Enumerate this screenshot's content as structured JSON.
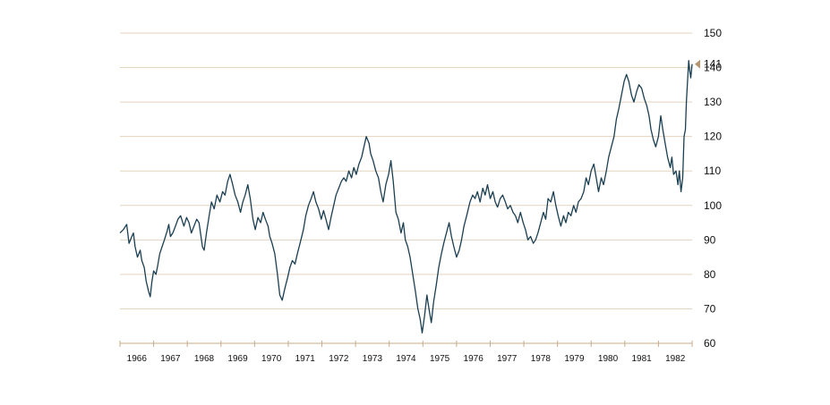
{
  "chart_data": {
    "type": "line",
    "title": "",
    "xlabel": "",
    "ylabel": "",
    "ylim": [
      60,
      150
    ],
    "xlim": [
      1965.6,
      1982.6
    ],
    "grid": true,
    "y_ticks": [
      60,
      70,
      80,
      90,
      100,
      110,
      120,
      130,
      140,
      150
    ],
    "x_tick_labels": [
      "1966",
      "1967",
      "1968",
      "1969",
      "1970",
      "1971",
      "1972",
      "1973",
      "1974",
      "1975",
      "1976",
      "1977",
      "1978",
      "1979",
      "1980",
      "1981",
      "1982"
    ],
    "current_value_label": "141",
    "current_value": 141,
    "colors": {
      "line": "#1b3f52",
      "grid": "#e3d3bf",
      "marker": "#b59673",
      "axis": "#c9ab8a"
    },
    "series": [
      {
        "values": [
          [
            1965.6,
            92
          ],
          [
            1965.7,
            93
          ],
          [
            1965.8,
            94.5
          ],
          [
            1965.87,
            89
          ],
          [
            1965.95,
            91
          ],
          [
            1966.0,
            92
          ],
          [
            1966.05,
            88
          ],
          [
            1966.12,
            85
          ],
          [
            1966.2,
            87
          ],
          [
            1966.25,
            84
          ],
          [
            1966.32,
            82
          ],
          [
            1966.38,
            78
          ],
          [
            1966.45,
            75
          ],
          [
            1966.5,
            73.5
          ],
          [
            1966.55,
            78
          ],
          [
            1966.6,
            81
          ],
          [
            1966.67,
            80
          ],
          [
            1966.72,
            82.5
          ],
          [
            1966.78,
            86
          ],
          [
            1966.85,
            88
          ],
          [
            1966.92,
            90
          ],
          [
            1967.0,
            92.5
          ],
          [
            1967.05,
            94.5
          ],
          [
            1967.1,
            91
          ],
          [
            1967.17,
            92
          ],
          [
            1967.25,
            94
          ],
          [
            1967.32,
            96
          ],
          [
            1967.4,
            97
          ],
          [
            1967.5,
            94
          ],
          [
            1967.58,
            96.5
          ],
          [
            1967.65,
            95
          ],
          [
            1967.72,
            92
          ],
          [
            1967.8,
            94
          ],
          [
            1967.88,
            96
          ],
          [
            1967.95,
            95
          ],
          [
            1968.05,
            88
          ],
          [
            1968.1,
            87
          ],
          [
            1968.17,
            92
          ],
          [
            1968.25,
            97
          ],
          [
            1968.32,
            101
          ],
          [
            1968.4,
            99
          ],
          [
            1968.48,
            103
          ],
          [
            1968.57,
            101
          ],
          [
            1968.65,
            104
          ],
          [
            1968.72,
            103
          ],
          [
            1968.8,
            107
          ],
          [
            1968.87,
            109
          ],
          [
            1968.95,
            106
          ],
          [
            1969.02,
            103
          ],
          [
            1969.1,
            101
          ],
          [
            1969.18,
            98
          ],
          [
            1969.25,
            101
          ],
          [
            1969.32,
            103
          ],
          [
            1969.4,
            106
          ],
          [
            1969.47,
            102
          ],
          [
            1969.55,
            96
          ],
          [
            1969.62,
            93
          ],
          [
            1969.7,
            96.5
          ],
          [
            1969.78,
            95
          ],
          [
            1969.85,
            98
          ],
          [
            1969.92,
            96
          ],
          [
            1970.0,
            94
          ],
          [
            1970.05,
            91
          ],
          [
            1970.12,
            89
          ],
          [
            1970.2,
            86
          ],
          [
            1970.28,
            80
          ],
          [
            1970.35,
            74
          ],
          [
            1970.42,
            72.5
          ],
          [
            1970.5,
            76
          ],
          [
            1970.58,
            79
          ],
          [
            1970.65,
            82
          ],
          [
            1970.72,
            84
          ],
          [
            1970.8,
            83
          ],
          [
            1970.87,
            86
          ],
          [
            1970.95,
            89
          ],
          [
            1971.05,
            93
          ],
          [
            1971.12,
            97
          ],
          [
            1971.2,
            100
          ],
          [
            1971.28,
            102
          ],
          [
            1971.35,
            104
          ],
          [
            1971.42,
            101
          ],
          [
            1971.5,
            99
          ],
          [
            1971.58,
            96
          ],
          [
            1971.65,
            98.5
          ],
          [
            1971.72,
            96
          ],
          [
            1971.8,
            93
          ],
          [
            1971.88,
            97
          ],
          [
            1971.95,
            100
          ],
          [
            1972.02,
            103
          ],
          [
            1972.1,
            105
          ],
          [
            1972.18,
            107
          ],
          [
            1972.25,
            108
          ],
          [
            1972.32,
            107
          ],
          [
            1972.4,
            110
          ],
          [
            1972.48,
            108
          ],
          [
            1972.55,
            111
          ],
          [
            1972.62,
            109
          ],
          [
            1972.7,
            112
          ],
          [
            1972.78,
            114
          ],
          [
            1972.85,
            117
          ],
          [
            1972.92,
            120
          ],
          [
            1973.0,
            118
          ],
          [
            1973.05,
            115
          ],
          [
            1973.12,
            113
          ],
          [
            1973.2,
            110
          ],
          [
            1973.28,
            108
          ],
          [
            1973.35,
            104
          ],
          [
            1973.42,
            101
          ],
          [
            1973.5,
            106
          ],
          [
            1973.58,
            109
          ],
          [
            1973.65,
            113
          ],
          [
            1973.72,
            107
          ],
          [
            1973.8,
            98
          ],
          [
            1973.87,
            96
          ],
          [
            1973.95,
            92
          ],
          [
            1974.02,
            95
          ],
          [
            1974.08,
            90
          ],
          [
            1974.15,
            88
          ],
          [
            1974.22,
            85
          ],
          [
            1974.3,
            80
          ],
          [
            1974.38,
            75
          ],
          [
            1974.45,
            70
          ],
          [
            1974.52,
            67
          ],
          [
            1974.58,
            63
          ],
          [
            1974.65,
            68
          ],
          [
            1974.72,
            74
          ],
          [
            1974.78,
            70
          ],
          [
            1974.85,
            66
          ],
          [
            1974.92,
            72
          ],
          [
            1975.0,
            77
          ],
          [
            1975.07,
            82
          ],
          [
            1975.15,
            86
          ],
          [
            1975.22,
            89
          ],
          [
            1975.3,
            92
          ],
          [
            1975.38,
            95
          ],
          [
            1975.45,
            91
          ],
          [
            1975.52,
            88
          ],
          [
            1975.6,
            85
          ],
          [
            1975.68,
            87
          ],
          [
            1975.75,
            90
          ],
          [
            1975.82,
            94
          ],
          [
            1975.9,
            97
          ],
          [
            1976.0,
            101
          ],
          [
            1976.08,
            103
          ],
          [
            1976.15,
            102
          ],
          [
            1976.22,
            104
          ],
          [
            1976.3,
            101
          ],
          [
            1976.38,
            105
          ],
          [
            1976.45,
            103
          ],
          [
            1976.52,
            106
          ],
          [
            1976.6,
            102
          ],
          [
            1976.68,
            104
          ],
          [
            1976.75,
            101
          ],
          [
            1976.82,
            99.5
          ],
          [
            1976.9,
            102
          ],
          [
            1976.97,
            103
          ],
          [
            1977.05,
            101
          ],
          [
            1977.12,
            99
          ],
          [
            1977.2,
            100
          ],
          [
            1977.28,
            98
          ],
          [
            1977.35,
            97
          ],
          [
            1977.42,
            95
          ],
          [
            1977.5,
            98
          ],
          [
            1977.58,
            95
          ],
          [
            1977.65,
            93
          ],
          [
            1977.72,
            90
          ],
          [
            1977.8,
            91
          ],
          [
            1977.88,
            89
          ],
          [
            1977.95,
            90
          ],
          [
            1978.02,
            92
          ],
          [
            1978.1,
            95
          ],
          [
            1978.18,
            98
          ],
          [
            1978.25,
            96
          ],
          [
            1978.32,
            102
          ],
          [
            1978.4,
            101
          ],
          [
            1978.48,
            104
          ],
          [
            1978.55,
            100
          ],
          [
            1978.62,
            97
          ],
          [
            1978.7,
            94
          ],
          [
            1978.78,
            97
          ],
          [
            1978.85,
            95
          ],
          [
            1978.92,
            98
          ],
          [
            1979.0,
            97
          ],
          [
            1979.08,
            100
          ],
          [
            1979.15,
            98
          ],
          [
            1979.22,
            101
          ],
          [
            1979.3,
            102
          ],
          [
            1979.38,
            104
          ],
          [
            1979.45,
            108
          ],
          [
            1979.52,
            106
          ],
          [
            1979.6,
            110
          ],
          [
            1979.68,
            112
          ],
          [
            1979.75,
            108
          ],
          [
            1979.82,
            104
          ],
          [
            1979.9,
            108
          ],
          [
            1979.97,
            106
          ],
          [
            1980.05,
            110
          ],
          [
            1980.12,
            114
          ],
          [
            1980.2,
            117
          ],
          [
            1980.28,
            120
          ],
          [
            1980.35,
            125
          ],
          [
            1980.42,
            128
          ],
          [
            1980.5,
            132
          ],
          [
            1980.58,
            136
          ],
          [
            1980.65,
            138
          ],
          [
            1980.72,
            136
          ],
          [
            1980.8,
            132
          ],
          [
            1980.87,
            130
          ],
          [
            1980.95,
            133
          ],
          [
            1981.02,
            135
          ],
          [
            1981.1,
            134
          ],
          [
            1981.18,
            131
          ],
          [
            1981.25,
            129
          ],
          [
            1981.32,
            126
          ],
          [
            1981.38,
            122
          ],
          [
            1981.45,
            119
          ],
          [
            1981.52,
            117
          ],
          [
            1981.6,
            120
          ],
          [
            1981.67,
            126
          ],
          [
            1981.73,
            122
          ],
          [
            1981.8,
            118
          ],
          [
            1981.87,
            114
          ],
          [
            1981.95,
            111
          ],
          [
            1982.0,
            114
          ],
          [
            1982.05,
            109
          ],
          [
            1982.12,
            110
          ],
          [
            1982.18,
            106
          ],
          [
            1982.22,
            110
          ],
          [
            1982.27,
            104
          ],
          [
            1982.32,
            108
          ],
          [
            1982.36,
            120
          ],
          [
            1982.4,
            122
          ],
          [
            1982.43,
            130
          ],
          [
            1982.47,
            137
          ],
          [
            1982.5,
            142
          ],
          [
            1982.53,
            139
          ],
          [
            1982.56,
            137
          ],
          [
            1982.6,
            141
          ]
        ]
      }
    ]
  }
}
